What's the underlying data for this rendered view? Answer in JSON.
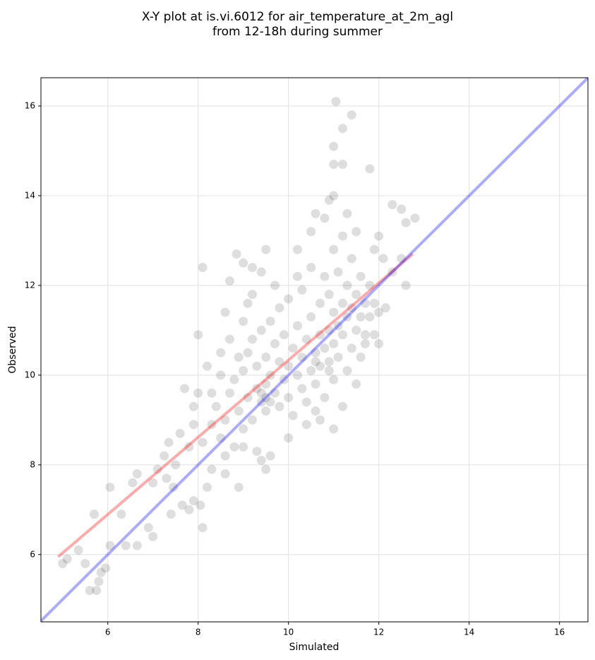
{
  "chart_data": {
    "type": "scatter",
    "title": "X-Y plot at is.vi.6012 for air_temperature_at_2m_agl\nfrom 12-18h during summer",
    "xlabel": "Simulated",
    "ylabel": "Observed",
    "xlim": [
      4.52,
      16.63
    ],
    "ylim": [
      4.5,
      16.63
    ],
    "xticks": [
      6,
      8,
      10,
      12,
      14,
      16
    ],
    "yticks": [
      6,
      8,
      10,
      12,
      14,
      16
    ],
    "grid": true,
    "series": [
      {
        "color": "#000000",
        "x": [
          5.0,
          5.1,
          5.35,
          5.5,
          5.6,
          5.7,
          5.75,
          5.8,
          5.85,
          5.95,
          6.05,
          6.05,
          6.3,
          6.4,
          6.55,
          6.65,
          6.65,
          6.9,
          7.0,
          7.0,
          7.1,
          7.25,
          7.3,
          7.35,
          7.4,
          7.45,
          7.5,
          7.6,
          7.65,
          7.7,
          7.8,
          7.9,
          7.9,
          8.05,
          8.1,
          8.1,
          8.0,
          8.2,
          8.3,
          8.5,
          8.6,
          8.7,
          8.85,
          8.9,
          9.0,
          9.1,
          9.2,
          9.4,
          9.5,
          9.3,
          9.6,
          9.4,
          10.0,
          10.7,
          11.0,
          11.05,
          11.0,
          11.0,
          11.2,
          11.4,
          11.2,
          11.8,
          11.0,
          12.3,
          12.5,
          12.8,
          12.6,
          12.6,
          12.0,
          11.3,
          11.5,
          10.8,
          10.5,
          10.2,
          12.1,
          11.9,
          11.7,
          12.15,
          8.3,
          8.4,
          8.5,
          8.6,
          8.6,
          8.7,
          8.8,
          8.8,
          8.9,
          9.0,
          9.0,
          9.1,
          9.1,
          9.2,
          9.2,
          9.3,
          9.3,
          9.4,
          9.4,
          9.5,
          9.5,
          9.5,
          9.6,
          9.6,
          9.7,
          9.7,
          9.8,
          9.8,
          9.8,
          9.9,
          9.9,
          10.0,
          10.0,
          10.0,
          10.1,
          10.1,
          10.2,
          10.2,
          10.3,
          10.3,
          10.3,
          10.4,
          10.4,
          10.5,
          10.5,
          10.5,
          10.6,
          10.6,
          10.7,
          10.7,
          10.7,
          10.8,
          10.8,
          10.8,
          10.9,
          10.9,
          10.9,
          11.0,
          11.0,
          11.0,
          11.0,
          11.1,
          11.1,
          11.1,
          11.2,
          11.2,
          11.2,
          11.3,
          11.3,
          11.3,
          11.4,
          11.4,
          11.4,
          11.5,
          11.5,
          11.5,
          11.6,
          11.6,
          11.7,
          11.7,
          11.8,
          11.8,
          11.9,
          12.0,
          12.0,
          9.5,
          9.6,
          9.4,
          10.9,
          10.6,
          8.0,
          8.2,
          8.1,
          8.3,
          8.6,
          8.5,
          8.7,
          9.0,
          9.2,
          9.5,
          9.0,
          10.2,
          10.6,
          10.9,
          10.4,
          10.6,
          11.2,
          11.6,
          11.9,
          12.3,
          12.5,
          7.9,
          7.8,
          8.9,
          9.7
        ],
        "y": [
          5.8,
          5.9,
          6.1,
          5.8,
          5.2,
          6.9,
          5.2,
          5.4,
          5.6,
          5.7,
          6.2,
          7.5,
          6.9,
          6.2,
          7.6,
          6.2,
          7.8,
          6.6,
          6.4,
          7.6,
          7.9,
          8.2,
          7.7,
          8.5,
          6.9,
          7.5,
          8.0,
          8.7,
          7.1,
          9.7,
          7.0,
          7.2,
          8.9,
          7.1,
          6.6,
          12.4,
          10.9,
          7.5,
          9.6,
          10.5,
          11.4,
          12.1,
          12.7,
          7.5,
          12.5,
          11.6,
          12.4,
          12.3,
          12.8,
          8.3,
          8.2,
          8.1,
          8.6,
          9.0,
          8.8,
          16.1,
          14.7,
          15.1,
          15.5,
          15.8,
          14.7,
          14.6,
          14.0,
          13.8,
          13.7,
          13.5,
          13.4,
          12.0,
          10.7,
          13.6,
          13.2,
          13.5,
          13.2,
          12.2,
          12.6,
          12.8,
          10.7,
          11.5,
          8.9,
          9.3,
          8.6,
          9.0,
          8.2,
          9.6,
          8.4,
          9.9,
          9.2,
          10.1,
          8.8,
          9.5,
          10.5,
          9.0,
          10.8,
          9.7,
          10.2,
          9.4,
          11.0,
          9.8,
          10.4,
          9.2,
          10.0,
          11.2,
          9.6,
          10.7,
          9.3,
          10.3,
          11.5,
          9.9,
          10.9,
          10.2,
          9.5,
          11.7,
          10.6,
          9.1,
          10.0,
          11.1,
          10.4,
          9.7,
          11.9,
          10.8,
          9.4,
          10.1,
          11.3,
          12.4,
          10.5,
          9.8,
          10.9,
          11.6,
          10.2,
          10.6,
          12.2,
          9.5,
          11.0,
          10.3,
          11.8,
          10.7,
          11.4,
          12.8,
          9.9,
          11.1,
          10.4,
          12.3,
          10.9,
          11.6,
          13.1,
          11.3,
          10.1,
          12.0,
          11.5,
          10.6,
          12.6,
          11.0,
          11.8,
          9.8,
          11.3,
          12.2,
          11.6,
          10.9,
          12.0,
          11.3,
          11.6,
          11.4,
          13.1,
          9.5,
          9.4,
          9.6,
          10.1,
          10.3,
          9.6,
          10.2,
          8.5,
          7.9,
          7.8,
          10.0,
          10.8,
          11.2,
          11.8,
          7.9,
          8.4,
          12.8,
          13.6,
          13.9,
          8.9,
          9.2,
          9.3,
          10.4,
          10.9,
          12.3,
          12.6,
          9.3,
          8.4,
          10.4,
          12.0
        ]
      },
      {
        "color": "#ff0000",
        "x": [
          4.9,
          12.75
        ],
        "y": [
          5.95,
          12.7
        ]
      },
      {
        "color": "#0000ff",
        "x": [
          4.52,
          16.63
        ],
        "y": [
          4.52,
          16.63
        ]
      }
    ]
  }
}
